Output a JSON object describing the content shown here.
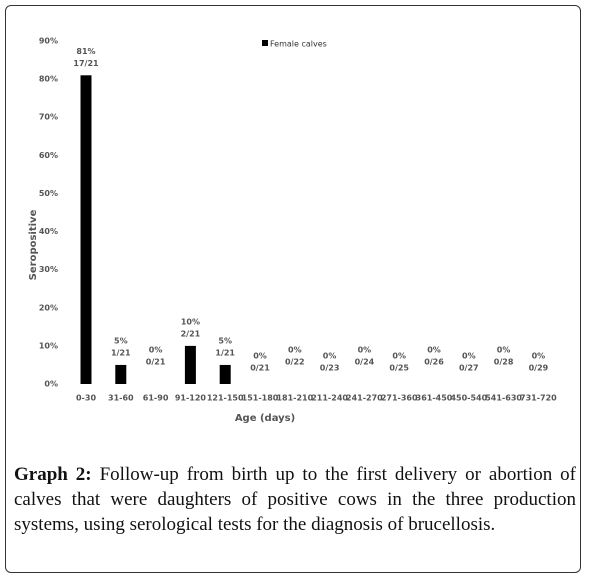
{
  "chart_data": {
    "type": "bar",
    "legend_title": "Female calves",
    "y_label": "Seropositive",
    "x_label": "Age (days)",
    "categories": [
      "0-30",
      "31-60",
      "61-90",
      "91-120",
      "121-150",
      "151-180",
      "181-210",
      "211-240",
      "241-270",
      "271-360",
      "361-450",
      "450-540",
      "541-630",
      "731-720"
    ],
    "values": [
      81,
      5,
      0,
      10,
      5,
      0,
      0,
      0,
      0,
      0,
      0,
      0,
      0,
      0
    ],
    "value_labels": [
      "81%",
      "5%",
      "0%",
      "10%",
      "5%",
      "0%",
      "0%",
      "0%",
      "0%",
      "0%",
      "0%",
      "0%",
      "0%",
      "0%"
    ],
    "counts": [
      "17/21",
      "1/21",
      "0/21",
      "2/21",
      "1/21",
      "0/21",
      "0/22",
      "0/23",
      "0/24",
      "0/25",
      "0/26",
      "0/27",
      "0/28",
      "0/29"
    ],
    "color": "#000000",
    "ylim": [
      0,
      90
    ],
    "yticks": [
      {
        "value": 0,
        "label": "0%"
      },
      {
        "value": 10,
        "label": "10%"
      },
      {
        "value": 20,
        "label": "20%"
      },
      {
        "value": 30,
        "label": "30%"
      },
      {
        "value": 40,
        "label": "40%"
      },
      {
        "value": 50,
        "label": "50%"
      },
      {
        "value": 60,
        "label": "60%"
      },
      {
        "value": 70,
        "label": "70%"
      },
      {
        "value": 80,
        "label": "80%"
      },
      {
        "value": 90,
        "label": "90%"
      }
    ],
    "grid": false
  },
  "caption": {
    "label": "Graph 2:",
    "text": " Follow-up from birth up to the first delivery or abortion of calves that were daughters of positive cows in the three production systems, using serological tests for the diagnosis of brucellosis."
  }
}
